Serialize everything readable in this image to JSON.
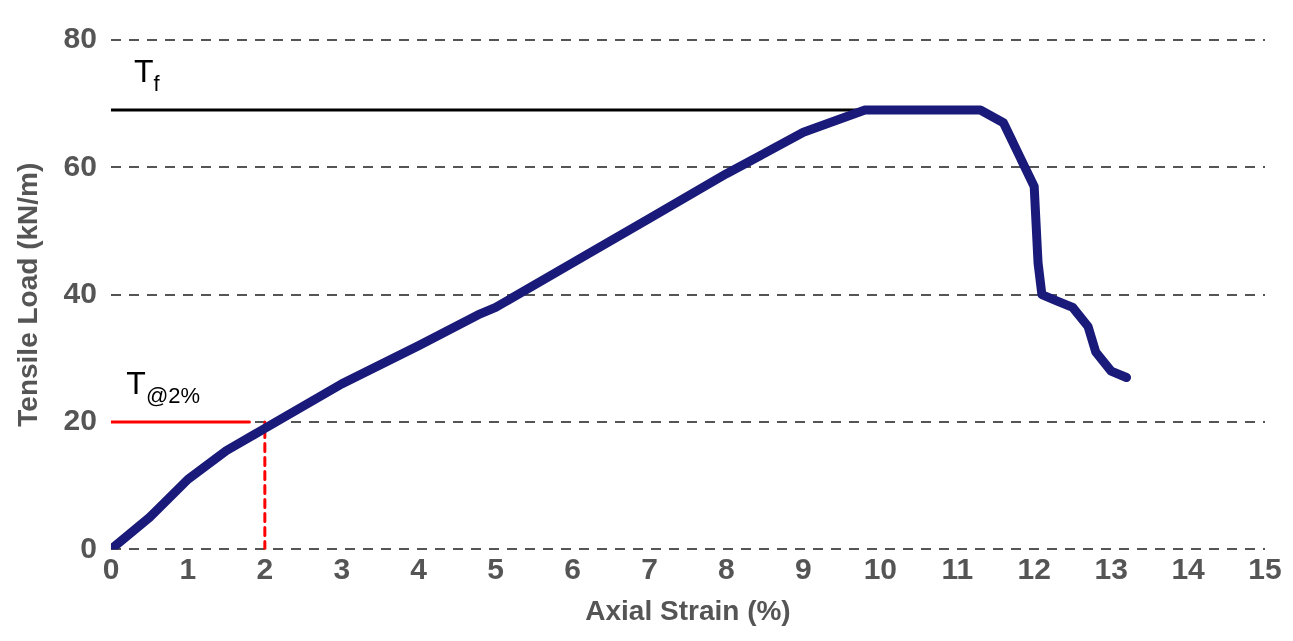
{
  "chart_data": {
    "type": "line",
    "xlabel": "Axial Strain (%)",
    "ylabel": "Tensile Load (kN/m)",
    "xlim": [
      0,
      15
    ],
    "xticks": [
      0,
      1,
      2,
      3,
      4,
      5,
      6,
      7,
      8,
      9,
      10,
      11,
      12,
      13,
      14,
      15
    ],
    "ylim": [
      0,
      80
    ],
    "yticks": [
      0,
      20,
      40,
      60,
      80
    ],
    "grid": "y",
    "legend": false,
    "marker": "none",
    "series": [
      {
        "color": "#1a1a7a",
        "x": [
          0,
          0.5,
          1,
          1.5,
          2,
          3,
          4,
          4.8,
          5,
          6,
          7,
          8,
          9,
          9.8,
          10,
          11.3,
          11.6,
          11.8,
          12,
          12.05,
          12.1,
          12.3,
          12.5,
          12.7,
          12.8,
          13,
          13.2
        ],
        "values": [
          0,
          5,
          11,
          15.5,
          19,
          26,
          32,
          37,
          38,
          45,
          52,
          59,
          65.5,
          69,
          69,
          69,
          67,
          62,
          57,
          45,
          40,
          39,
          38,
          35,
          31,
          28,
          27
        ]
      },
      {
        "color": "#000000",
        "x": [
          0,
          10.8
        ],
        "values": [
          69,
          69
        ],
        "line_style": "solid"
      },
      {
        "color": "#ff0000",
        "x": [
          0,
          1.8
        ],
        "values": [
          20,
          20
        ],
        "line_style": "solid"
      },
      {
        "color": "#ff0000",
        "x": [
          2,
          2
        ],
        "values": [
          0,
          20
        ],
        "line_style": "dashed"
      }
    ],
    "annotations": [
      {
        "text": "T$_{f}$",
        "x": 0.3,
        "y": 69
      },
      {
        "text": "T$_{@2%}$",
        "x": 0.2,
        "y": 20
      }
    ]
  }
}
